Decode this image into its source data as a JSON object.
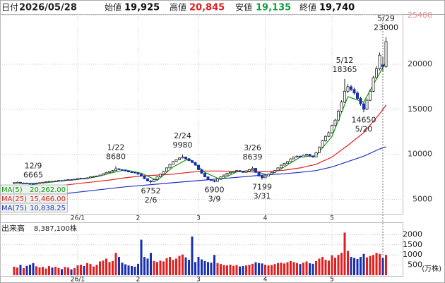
{
  "header": {
    "items": [
      {
        "label": "日付",
        "value": "2026/05/28",
        "color": "#222222"
      },
      {
        "label": "始値",
        "value": "19,925",
        "color": "#111111"
      },
      {
        "label": "高値",
        "value": "20,845",
        "color": "#e02020"
      },
      {
        "label": "安値",
        "value": "19,135",
        "color": "#10a040"
      },
      {
        "label": "終値",
        "value": "19,740",
        "color": "#111111"
      }
    ]
  },
  "chart_data": {
    "type": "candlestick",
    "categories": [
      null,
      null,
      null,
      null,
      null,
      null,
      null,
      null,
      null,
      null,
      null,
      null,
      null,
      null,
      null,
      null,
      null,
      null,
      null,
      null,
      "26/1",
      null,
      null,
      null,
      null,
      null,
      null,
      null,
      null,
      null,
      null,
      null,
      null,
      null,
      null,
      null,
      null,
      null,
      null,
      "2",
      null,
      null,
      null,
      null,
      null,
      null,
      null,
      null,
      null,
      null,
      null,
      null,
      null,
      null,
      null,
      null,
      null,
      null,
      "3",
      null,
      null,
      null,
      null,
      null,
      null,
      null,
      null,
      null,
      null,
      null,
      null,
      null,
      null,
      null,
      null,
      null,
      null,
      null,
      null,
      "4",
      null,
      null,
      null,
      null,
      null,
      null,
      null,
      null,
      null,
      null,
      null,
      null,
      null,
      null,
      null,
      null,
      null,
      null,
      null,
      null,
      "5",
      null,
      null,
      null,
      null,
      null,
      null,
      null,
      null,
      null,
      null,
      null,
      null,
      null,
      null,
      null,
      null,
      null
    ],
    "candles": [
      [
        6800,
        6920,
        6760,
        6850
      ],
      [
        6850,
        6950,
        6820,
        6900
      ],
      [
        6900,
        6930,
        6740,
        6780
      ],
      [
        6780,
        6870,
        6750,
        6820
      ],
      [
        6820,
        6850,
        6720,
        6760
      ],
      [
        6760,
        6800,
        6690,
        6720
      ],
      [
        6720,
        6760,
        6665,
        6700
      ],
      [
        6700,
        6820,
        6690,
        6780
      ],
      [
        6780,
        6890,
        6760,
        6850
      ],
      [
        6850,
        6940,
        6830,
        6900
      ],
      [
        6900,
        6990,
        6880,
        6950
      ],
      [
        6950,
        7050,
        6930,
        7000
      ],
      [
        7000,
        7040,
        6940,
        6980
      ],
      [
        6980,
        7090,
        6960,
        7050
      ],
      [
        7050,
        7140,
        7030,
        7100
      ],
      [
        7100,
        7130,
        7040,
        7080
      ],
      [
        7080,
        7190,
        7060,
        7150
      ],
      [
        7150,
        7240,
        7130,
        7200
      ],
      [
        7200,
        7230,
        7140,
        7180
      ],
      [
        7180,
        7290,
        7160,
        7250
      ],
      [
        7250,
        7350,
        7230,
        7300
      ],
      [
        7300,
        7400,
        7280,
        7350
      ],
      [
        7350,
        7380,
        7240,
        7280
      ],
      [
        7280,
        7440,
        7260,
        7400
      ],
      [
        7400,
        7540,
        7380,
        7500
      ],
      [
        7500,
        7600,
        7470,
        7550
      ],
      [
        7550,
        7650,
        7520,
        7600
      ],
      [
        7600,
        7750,
        7580,
        7700
      ],
      [
        7700,
        7900,
        7680,
        7850
      ],
      [
        7850,
        8060,
        7830,
        8000
      ],
      [
        8000,
        8150,
        7970,
        8100
      ],
      [
        8100,
        8260,
        8080,
        8200
      ],
      [
        8200,
        8680,
        8180,
        8400
      ],
      [
        8400,
        8450,
        8250,
        8300
      ],
      [
        8300,
        8350,
        8200,
        8250
      ],
      [
        8250,
        8290,
        8100,
        8150
      ],
      [
        8150,
        8200,
        8000,
        8050
      ],
      [
        8050,
        8100,
        7950,
        8000
      ],
      [
        8000,
        8060,
        7900,
        7950
      ],
      [
        7950,
        7990,
        7750,
        7800
      ],
      [
        7800,
        7840,
        7550,
        7600
      ],
      [
        7600,
        7650,
        7250,
        7300
      ],
      [
        7300,
        7350,
        7000,
        7050
      ],
      [
        7050,
        7150,
        6752,
        6950
      ],
      [
        6950,
        7250,
        6920,
        7200
      ],
      [
        7200,
        7560,
        7180,
        7500
      ],
      [
        7500,
        7860,
        7480,
        7800
      ],
      [
        7800,
        8160,
        7780,
        8100
      ],
      [
        8100,
        8560,
        8080,
        8500
      ],
      [
        8500,
        8960,
        8480,
        8900
      ],
      [
        8900,
        9260,
        8880,
        9200
      ],
      [
        9200,
        9460,
        9150,
        9400
      ],
      [
        9400,
        9660,
        9350,
        9600
      ],
      [
        9600,
        9980,
        9550,
        9700
      ],
      [
        9700,
        9750,
        9450,
        9500
      ],
      [
        9500,
        9550,
        9250,
        9300
      ],
      [
        9300,
        9350,
        9050,
        9100
      ],
      [
        9100,
        9150,
        8750,
        8800
      ],
      [
        8800,
        8850,
        8250,
        8300
      ],
      [
        8300,
        8350,
        7850,
        7900
      ],
      [
        7900,
        7950,
        7450,
        7500
      ],
      [
        7500,
        7550,
        7150,
        7200
      ],
      [
        7200,
        7250,
        7050,
        7100
      ],
      [
        7100,
        7150,
        6900,
        7000
      ],
      [
        7000,
        7350,
        6980,
        7300
      ],
      [
        7300,
        7560,
        7280,
        7500
      ],
      [
        7500,
        7760,
        7480,
        7700
      ],
      [
        7700,
        7960,
        7680,
        7900
      ],
      [
        7900,
        8060,
        7880,
        8000
      ],
      [
        8000,
        8160,
        7980,
        8100
      ],
      [
        8100,
        8260,
        8080,
        8200
      ],
      [
        8200,
        8240,
        8050,
        8100
      ],
      [
        8100,
        8150,
        7950,
        8000
      ],
      [
        8000,
        8200,
        7980,
        8150
      ],
      [
        8150,
        8360,
        8130,
        8300
      ],
      [
        8300,
        8639,
        8280,
        8450
      ],
      [
        8450,
        8480,
        7950,
        8000
      ],
      [
        8000,
        8050,
        7550,
        7600
      ],
      [
        7600,
        7650,
        7199,
        7400
      ],
      [
        7400,
        7650,
        7380,
        7600
      ],
      [
        7600,
        7860,
        7580,
        7800
      ],
      [
        7800,
        8060,
        7780,
        8000
      ],
      [
        8000,
        8260,
        7980,
        8200
      ],
      [
        8200,
        8560,
        8180,
        8500
      ],
      [
        8500,
        8860,
        8480,
        8800
      ],
      [
        8800,
        9060,
        8780,
        9000
      ],
      [
        9000,
        9260,
        8980,
        9200
      ],
      [
        9200,
        9560,
        9180,
        9500
      ],
      [
        9500,
        9760,
        9480,
        9700
      ],
      [
        9700,
        9880,
        9650,
        9800
      ],
      [
        9800,
        9850,
        9620,
        9700
      ],
      [
        9700,
        9960,
        9680,
        9900
      ],
      [
        9900,
        10080,
        9850,
        10000
      ],
      [
        10000,
        10050,
        9750,
        9800
      ],
      [
        9800,
        9850,
        9620,
        9700
      ],
      [
        9700,
        10260,
        9680,
        10200
      ],
      [
        10200,
        10880,
        10150,
        10800
      ],
      [
        10800,
        11600,
        10750,
        11500
      ],
      [
        11500,
        12100,
        11400,
        12000
      ],
      [
        12000,
        12550,
        11900,
        12400
      ],
      [
        12400,
        13300,
        12300,
        13200
      ],
      [
        13200,
        13950,
        13100,
        13800
      ],
      [
        13800,
        14950,
        13700,
        14800
      ],
      [
        14800,
        16000,
        14700,
        15800
      ],
      [
        15800,
        18365,
        15700,
        17000
      ],
      [
        17000,
        17800,
        16800,
        17500
      ],
      [
        17500,
        17700,
        17000,
        17200
      ],
      [
        17200,
        17400,
        16600,
        16800
      ],
      [
        16800,
        17000,
        16000,
        16200
      ],
      [
        16200,
        16400,
        15400,
        15600
      ],
      [
        15600,
        15800,
        14650,
        15000
      ],
      [
        15000,
        16200,
        14900,
        16000
      ],
      [
        16000,
        17200,
        15900,
        17000
      ],
      [
        17000,
        18700,
        16900,
        18500
      ],
      [
        18500,
        19800,
        18400,
        19500
      ],
      [
        19500,
        21300,
        19300,
        21000
      ],
      [
        19925,
        20845,
        19135,
        19740
      ],
      [
        19740,
        23000,
        19600,
        22500
      ]
    ],
    "ylim": [
      3400,
      25400
    ],
    "yticks": [
      5000,
      10000,
      15000,
      20000,
      25400
    ],
    "grid": true,
    "up_color": "#ffffff",
    "down_color": "#1a2fb0",
    "moving_averages": [
      {
        "name": "MA(5)",
        "value_label": "20,262.00",
        "color": "#109a10",
        "x": [
          0,
          5,
          10,
          15,
          20,
          25,
          30,
          35,
          40,
          45,
          50,
          55,
          60,
          65,
          70,
          75,
          80,
          85,
          90,
          95,
          100,
          105,
          110,
          115,
          117
        ],
        "values": [
          6820,
          6780,
          6850,
          7060,
          7230,
          7450,
          7900,
          8280,
          7900,
          7100,
          8600,
          9550,
          8000,
          7200,
          8050,
          8250,
          7650,
          8600,
          9700,
          9850,
          12000,
          16400,
          15800,
          19000,
          20262
        ]
      },
      {
        "name": "MA(25)",
        "value_label": "15,466.00",
        "color": "#e02020",
        "x": [
          0,
          5,
          10,
          15,
          20,
          25,
          30,
          35,
          40,
          45,
          50,
          55,
          60,
          65,
          70,
          75,
          80,
          85,
          90,
          95,
          100,
          105,
          110,
          115,
          117
        ],
        "values": [
          5950,
          6150,
          6350,
          6550,
          6750,
          6950,
          7150,
          7400,
          7600,
          7700,
          7800,
          8000,
          8150,
          8150,
          8100,
          8050,
          8100,
          8250,
          8500,
          8900,
          9700,
          11000,
          12400,
          14500,
          15466
        ]
      },
      {
        "name": "MA(75)",
        "value_label": "10,838.25",
        "color": "#2030c0",
        "x": [
          0,
          5,
          10,
          15,
          20,
          25,
          30,
          35,
          40,
          45,
          50,
          55,
          60,
          65,
          70,
          75,
          80,
          85,
          90,
          95,
          100,
          105,
          110,
          115,
          117
        ],
        "values": [
          5000,
          5200,
          5400,
          5600,
          5800,
          6000,
          6200,
          6400,
          6550,
          6700,
          6850,
          7000,
          7150,
          7300,
          7450,
          7600,
          7750,
          7850,
          8000,
          8200,
          8600,
          9200,
          9800,
          10600,
          10838.25
        ]
      }
    ],
    "annotations": [
      {
        "date": "12/9",
        "price": 6665
      },
      {
        "date": "1/22",
        "price": 8680
      },
      {
        "date": "2/6",
        "price": 6752
      },
      {
        "date": "2/24",
        "price": 9980
      },
      {
        "date": "3/9",
        "price": 6900
      },
      {
        "date": "3/26",
        "price": 8639
      },
      {
        "date": "3/31",
        "price": 7199
      },
      {
        "date": "5/12",
        "price": 18365
      },
      {
        "date": "5/20",
        "price": 14650
      },
      {
        "date": "5/29",
        "price": 23000
      }
    ],
    "volume": {
      "title": "出来高",
      "value_label": "8,387,100株",
      "unit": "(万株)",
      "values": [
        420,
        380,
        510,
        350,
        460,
        520,
        600,
        440,
        390,
        410,
        330,
        450,
        380,
        420,
        360,
        300,
        410,
        380,
        290,
        350,
        480,
        520,
        450,
        600,
        550,
        430,
        510,
        680,
        720,
        820,
        650,
        700,
        1100,
        900,
        620,
        540,
        480,
        450,
        420,
        560,
        1750,
        900,
        820,
        1100,
        700,
        650,
        720,
        680,
        840,
        900,
        760,
        820,
        950,
        1020,
        880,
        760,
        1900,
        650,
        900,
        780,
        700,
        650,
        620,
        1000,
        600,
        550,
        500,
        480,
        520,
        460,
        500,
        430,
        450,
        480,
        510,
        560,
        640,
        600,
        580,
        520,
        480,
        500,
        550,
        600,
        620,
        580,
        640,
        700,
        650,
        600,
        550,
        620,
        680,
        590,
        560,
        700,
        820,
        900,
        760,
        720,
        980,
        860,
        1000,
        1100,
        2100,
        1200,
        900,
        850,
        800,
        900,
        1050,
        880,
        950,
        1000,
        1100,
        1050,
        839,
        1000
      ],
      "ylim": [
        0,
        2500
      ],
      "yticks": [
        500,
        1000,
        1500,
        2000
      ],
      "up_color": "#e02020",
      "down_color": "#1a2fb0"
    }
  }
}
